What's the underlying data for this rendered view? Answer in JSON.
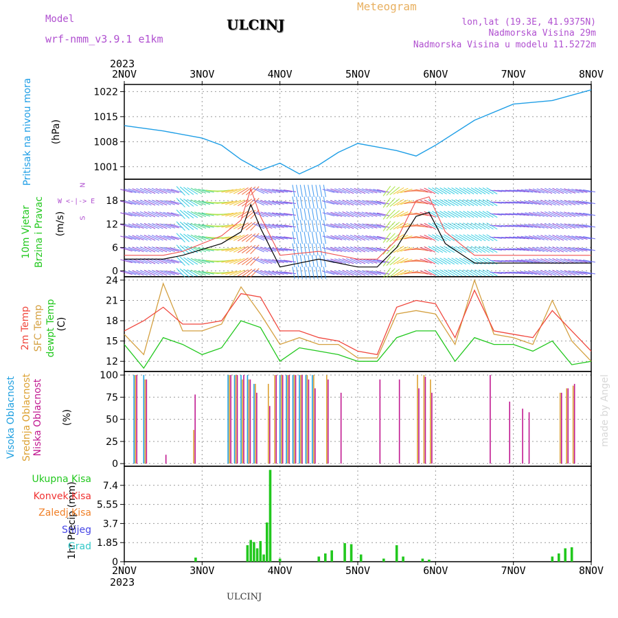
{
  "header": {
    "model_label": "Model",
    "model_name": "wrf-nmm_v3.9.1 e1km",
    "station": "ULCINJ",
    "meteogram_label": "Meteogram",
    "lonlat": "lon,lat (19.3E, 41.9375N)",
    "elevation": "Nadmorska Visina 29m",
    "model_elevation": "Nadmorska Visina u modelu 11.5272m",
    "watermark": "made by Angel",
    "footer_station": "ULCINJ"
  },
  "colors": {
    "pressure": "#1e9ee6",
    "temp2m": "#f0463c",
    "sfc_temp": "#d4a040",
    "dewpt": "#22c81e",
    "wind_speed": "#000000",
    "gust": "#f05050",
    "cloud_high": "#20a0e0",
    "cloud_mid": "#dca030",
    "cloud_low": "#c01890",
    "precip_total": "#22c81e",
    "precip_conv": "#f03232",
    "precip_strat": "#f08028",
    "snow": "#4646e6",
    "graupel": "#32c8c8",
    "header_purple": "#b050d0",
    "header_orange": "#e8b060"
  },
  "chart_data": [
    {
      "type": "line",
      "panel": "pressure",
      "ylabel_lines": [
        "Pritisak na nivou mora",
        "(hPa)"
      ],
      "yticks": [
        1001,
        1008,
        1015,
        1022
      ],
      "ylim": [
        997.5,
        1024
      ],
      "x": [
        "2023-11-02T00",
        "2023-11-02T12",
        "2023-11-03T00",
        "2023-11-03T06",
        "2023-11-03T12",
        "2023-11-03T18",
        "2023-11-04T00",
        "2023-11-04T06",
        "2023-11-04T12",
        "2023-11-04T18",
        "2023-11-05T00",
        "2023-11-05T06",
        "2023-11-05T12",
        "2023-11-05T18",
        "2023-11-06T00",
        "2023-11-06T12",
        "2023-11-07T00",
        "2023-11-07T12",
        "2023-11-08T00"
      ],
      "series": [
        {
          "values": [
            1012.5,
            1011.0,
            1009.0,
            1007.0,
            1003.0,
            1000.0,
            1002.0,
            999.0,
            1001.5,
            1005.0,
            1007.5,
            1006.5,
            1005.5,
            1004.0,
            1007.0,
            1014.0,
            1018.5,
            1019.5,
            1022.5
          ]
        }
      ],
      "grid": true
    },
    {
      "type": "line",
      "panel": "wind",
      "ylabel_lines": [
        "10m Vjetar",
        "Brzina i Pravac",
        "(m/s)"
      ],
      "direction_key": [
        "N",
        "W <-|-> E",
        "S"
      ],
      "yticks": [
        0,
        6,
        12,
        18
      ],
      "ylim": [
        -1.5,
        23.5
      ],
      "x": [
        "2023-11-02T00",
        "2023-11-02T12",
        "2023-11-02T18",
        "2023-11-03T06",
        "2023-11-03T12",
        "2023-11-03T15",
        "2023-11-03T18",
        "2023-11-04T00",
        "2023-11-04T12",
        "2023-11-05T00",
        "2023-11-05T06",
        "2023-11-05T12",
        "2023-11-05T18",
        "2023-11-05T22",
        "2023-11-06T03",
        "2023-11-06T12",
        "2023-11-07T00",
        "2023-11-07T12",
        "2023-11-08T00"
      ],
      "series": [
        {
          "values": [
            3,
            3,
            4,
            7,
            10,
            17,
            11,
            1,
            3,
            1,
            1,
            6,
            14,
            15,
            7,
            2,
            2,
            2,
            2
          ]
        },
        {
          "values": [
            4,
            4,
            5,
            9,
            13,
            21,
            14,
            4,
            5,
            3,
            3,
            8,
            18,
            19,
            10,
            4,
            4,
            4,
            4
          ]
        }
      ],
      "grid": true
    },
    {
      "type": "line",
      "panel": "temperature",
      "ylabel_lines": [
        "2m Temp",
        "SFC Temp",
        "dewpt Temp",
        "(C)"
      ],
      "yticks": [
        12,
        15,
        18,
        21,
        24
      ],
      "ylim": [
        10.5,
        24.5
      ],
      "x": [
        "2023-11-02T00",
        "2023-11-02T06",
        "2023-11-02T12",
        "2023-11-02T18",
        "2023-11-03T00",
        "2023-11-03T06",
        "2023-11-03T12",
        "2023-11-03T18",
        "2023-11-04T00",
        "2023-11-04T06",
        "2023-11-04T12",
        "2023-11-04T18",
        "2023-11-05T00",
        "2023-11-05T06",
        "2023-11-05T12",
        "2023-11-05T18",
        "2023-11-06T00",
        "2023-11-06T06",
        "2023-11-06T12",
        "2023-11-06T18",
        "2023-11-07T00",
        "2023-11-07T06",
        "2023-11-07T12",
        "2023-11-07T18",
        "2023-11-08T00"
      ],
      "series": [
        {
          "values": [
            16.5,
            18.0,
            20.0,
            17.5,
            17.5,
            18.0,
            22.0,
            21.5,
            16.5,
            16.5,
            15.5,
            15.0,
            13.5,
            13.0,
            20.0,
            21.0,
            20.5,
            15.5,
            22.5,
            16.5,
            16.0,
            15.5,
            19.5,
            16.5,
            13.5
          ]
        },
        {
          "values": [
            16.0,
            13.0,
            23.5,
            16.5,
            16.5,
            17.5,
            23.0,
            19.0,
            14.5,
            15.5,
            14.5,
            14.5,
            12.5,
            12.5,
            19.0,
            19.5,
            19.0,
            14.5,
            24.0,
            16.0,
            15.5,
            14.5,
            21.0,
            15.0,
            12.0
          ]
        },
        {
          "values": [
            14.5,
            11.0,
            15.5,
            14.5,
            13.0,
            14.0,
            18.0,
            17.0,
            12.0,
            14.0,
            13.5,
            13.0,
            12.0,
            12.0,
            15.5,
            16.5,
            16.5,
            12.0,
            15.5,
            14.5,
            14.5,
            13.5,
            15.0,
            11.5,
            12.0
          ]
        }
      ],
      "grid": true
    },
    {
      "type": "bar",
      "panel": "clouds",
      "ylabel_lines": [
        "Visoka Oblacnost",
        "Srednja Oblacnost",
        "Niska Oblacnost",
        "(%)"
      ],
      "yticks": [
        0,
        25,
        50,
        75,
        100
      ],
      "ylim": [
        -3,
        104
      ],
      "x": [
        "2023-11-02T03",
        "2023-11-02T06",
        "2023-11-02T12",
        "2023-11-02T21",
        "2023-11-03T08",
        "2023-11-03T10",
        "2023-11-03T12",
        "2023-11-03T14",
        "2023-11-03T16",
        "2023-11-03T20",
        "2023-11-03T22",
        "2023-11-04T00",
        "2023-11-04T02",
        "2023-11-04T04",
        "2023-11-04T06",
        "2023-11-04T08",
        "2023-11-04T10",
        "2023-11-04T14",
        "2023-11-04T18",
        "2023-11-05T06",
        "2023-11-05T12",
        "2023-11-05T18",
        "2023-11-05T20",
        "2023-11-05T22",
        "2023-11-06T16",
        "2023-11-06T22",
        "2023-11-07T02",
        "2023-11-07T04",
        "2023-11-07T14",
        "2023-11-07T16",
        "2023-11-07T18"
      ],
      "series": [
        {
          "values": [
            100,
            100,
            0,
            0,
            100,
            100,
            100,
            100,
            90,
            0,
            0,
            100,
            100,
            100,
            100,
            100,
            100,
            0,
            0,
            0,
            0,
            0,
            0,
            0,
            0,
            0,
            0,
            0,
            0,
            0,
            0
          ]
        },
        {
          "values": [
            100,
            95,
            0,
            38,
            100,
            100,
            95,
            95,
            90,
            90,
            100,
            100,
            100,
            100,
            100,
            100,
            100,
            100,
            0,
            0,
            0,
            100,
            100,
            95,
            0,
            0,
            0,
            0,
            80,
            85,
            88
          ]
        },
        {
          "values": [
            100,
            95,
            10,
            78,
            100,
            100,
            100,
            95,
            80,
            65,
            100,
            100,
            100,
            100,
            100,
            95,
            85,
            95,
            80,
            95,
            95,
            85,
            98,
            80,
            100,
            70,
            62,
            58,
            80,
            85,
            90
          ]
        }
      ],
      "grid": true
    },
    {
      "type": "bar",
      "panel": "precipitation",
      "ylabel_lines": [
        "1hr Precip (mm)"
      ],
      "legend": [
        "Ukupna Kisa",
        "Konvek.Kisa",
        "Zaledj.Kisa",
        "Snijeg",
        "Grad"
      ],
      "yticks": [
        0,
        1.85,
        3.7,
        5.55,
        7.4
      ],
      "ylim": [
        0,
        9.25
      ],
      "x": [
        "2023-11-02T22",
        "2023-11-03T14",
        "2023-11-03T15",
        "2023-11-03T16",
        "2023-11-03T17",
        "2023-11-03T18",
        "2023-11-03T19",
        "2023-11-03T20",
        "2023-11-03T21",
        "2023-11-04T00",
        "2023-11-04T12",
        "2023-11-04T14",
        "2023-11-04T16",
        "2023-11-04T20",
        "2023-11-04T22",
        "2023-11-05T01",
        "2023-11-05T08",
        "2023-11-05T12",
        "2023-11-05T14",
        "2023-11-05T20",
        "2023-11-05T22",
        "2023-11-07T12",
        "2023-11-07T14",
        "2023-11-07T16",
        "2023-11-07T18"
      ],
      "series": [
        {
          "values": [
            0.4,
            1.6,
            2.1,
            1.9,
            1.3,
            2.0,
            0.7,
            3.8,
            8.9,
            0.3,
            0.5,
            0.8,
            1.1,
            1.8,
            1.7,
            0.7,
            0.3,
            1.6,
            0.5,
            0.3,
            0.2,
            0.5,
            0.8,
            1.3,
            1.4
          ]
        }
      ],
      "grid": true
    }
  ],
  "x_axis": {
    "year_top": "2023",
    "year_bottom": "2023",
    "labels": [
      "2NOV",
      "3NOV",
      "4NOV",
      "5NOV",
      "6NOV",
      "7NOV",
      "8NOV"
    ]
  }
}
